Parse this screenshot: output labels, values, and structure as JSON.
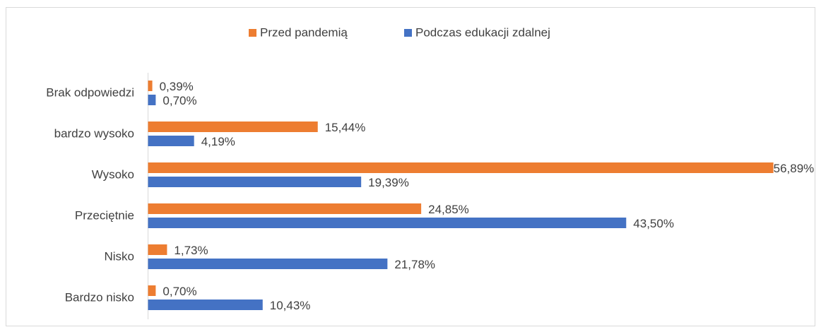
{
  "chart_data": {
    "type": "hbar",
    "categories": [
      "Brak odpowiedzi",
      "bardzo wysoko",
      "Wysoko",
      "Przeciętnie",
      "Nisko",
      "Bardzo nisko"
    ],
    "series": [
      {
        "name": "Przed pandemią",
        "color": "#ed7d31",
        "values": [
          0.39,
          15.44,
          56.89,
          24.85,
          1.73,
          0.7
        ],
        "value_labels": [
          "0,39%",
          "15,44%",
          "56,89%",
          "24,85%",
          "1,73%",
          "0,70%"
        ]
      },
      {
        "name": "Podczas edukacji zdalnej",
        "color": "#4472c4",
        "values": [
          0.7,
          4.19,
          19.39,
          43.5,
          21.78,
          10.43
        ],
        "value_labels": [
          "0,70%",
          "4,19%",
          "19,39%",
          "43,50%",
          "21,78%",
          "10,43%"
        ]
      }
    ],
    "xlim": [
      0,
      60
    ],
    "legend": "top"
  }
}
